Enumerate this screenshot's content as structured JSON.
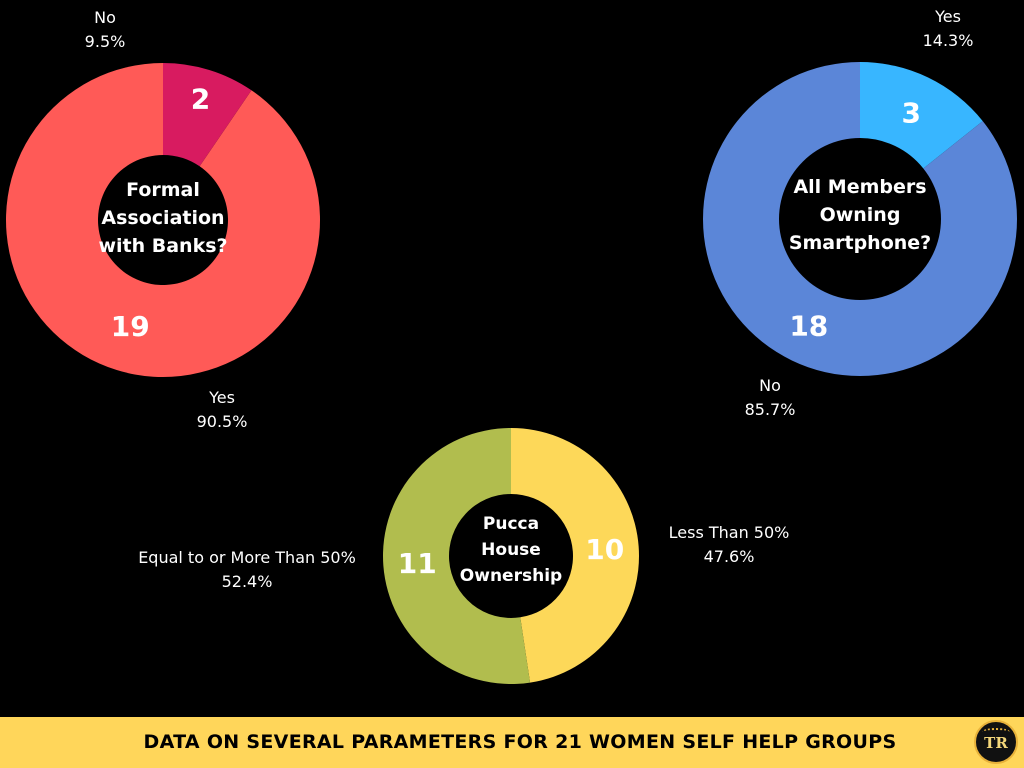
{
  "colors": {
    "background": "#000000",
    "footer_bg": "#ffd65a",
    "center_text": "#ffffff",
    "slice_label_text": "#ffffff",
    "annotation_text": "#ffffff"
  },
  "chart_data": [
    {
      "type": "pie",
      "variant": "donut",
      "center_label": [
        "Formal",
        "Association",
        "with Banks?"
      ],
      "slices": [
        {
          "label": "Yes",
          "value": 19,
          "percent": "90.5%",
          "color": "#ff5a57"
        },
        {
          "label": "No",
          "value": 2,
          "percent": "9.5%",
          "color": "#d81b60"
        }
      ]
    },
    {
      "type": "pie",
      "variant": "donut",
      "center_label": [
        "All Members",
        "Owning",
        "Smartphone?"
      ],
      "slices": [
        {
          "label": "Yes",
          "value": 3,
          "percent": "14.3%",
          "color": "#38b6ff"
        },
        {
          "label": "No",
          "value": 18,
          "percent": "85.7%",
          "color": "#5b86d8"
        }
      ]
    },
    {
      "type": "pie",
      "variant": "donut",
      "center_label": [
        "Pucca",
        "House",
        "Ownership"
      ],
      "slices": [
        {
          "label": "Less Than 50%",
          "value": 10,
          "percent": "47.6%",
          "color": "#fdd859"
        },
        {
          "label": "Equal to or More Than 50%",
          "value": 11,
          "percent": "52.4%",
          "color": "#b1bd4e"
        }
      ]
    }
  ],
  "footer": {
    "title": "DATA ON SEVERAL PARAMETERS FOR 21 WOMEN SELF HELP GROUPS",
    "logo_text": "TR",
    "logo_icon": "tr-sun-logo-icon"
  }
}
